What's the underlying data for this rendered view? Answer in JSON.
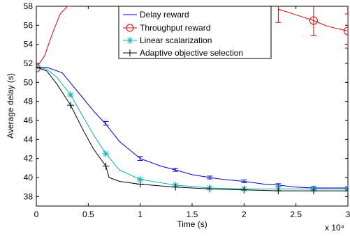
{
  "chart_data": {
    "type": "line",
    "title": "",
    "xlabel": "Time (s)",
    "ylabel": "Average delay (s)",
    "x_multiplier_label": "x 10⁴",
    "xlim": [
      0,
      30000
    ],
    "ylim": [
      37,
      58
    ],
    "x_ticks": [
      0,
      5000,
      10000,
      15000,
      20000,
      25000,
      30000
    ],
    "x_tick_labels": [
      "0",
      "0.5",
      "1",
      "1.5",
      "2",
      "2.5",
      "3"
    ],
    "y_ticks": [
      38,
      40,
      42,
      44,
      46,
      48,
      50,
      52,
      54,
      56,
      58
    ],
    "y_tick_labels": [
      "38",
      "40",
      "42",
      "44",
      "46",
      "48",
      "50",
      "52",
      "54",
      "56",
      "58"
    ],
    "grid": false,
    "legend_position": "top-right",
    "series": [
      {
        "name": "Delay reward",
        "color": "#0000cc",
        "marker": "errorbar",
        "x": [
          0,
          1000,
          2500,
          4000,
          5500,
          6700,
          8000,
          10000,
          12000,
          13400,
          15000,
          16700,
          18000,
          20000,
          22000,
          23300,
          25000,
          26700,
          28000,
          30000
        ],
        "y": [
          51.6,
          51.6,
          51.0,
          49.0,
          47.0,
          45.6,
          43.8,
          42.0,
          41.2,
          40.8,
          40.3,
          40.0,
          39.8,
          39.6,
          39.3,
          39.2,
          39.0,
          38.9,
          38.9,
          38.9
        ],
        "errorbars": [
          {
            "x": 6700,
            "y": 45.7,
            "err": 0.2
          },
          {
            "x": 10000,
            "y": 42.0,
            "err": 0.2
          },
          {
            "x": 13400,
            "y": 40.8,
            "err": 0.15
          },
          {
            "x": 16700,
            "y": 40.0,
            "err": 0.15
          },
          {
            "x": 20000,
            "y": 39.6,
            "err": 0.15
          },
          {
            "x": 23300,
            "y": 39.2,
            "err": 0.15
          },
          {
            "x": 26700,
            "y": 38.9,
            "err": 0.15
          },
          {
            "x": 30000,
            "y": 38.9,
            "err": 0.15
          }
        ]
      },
      {
        "name": "Throughput reward",
        "color": "#dd0000",
        "marker": "circle",
        "x": [
          0,
          800,
          1500,
          2300,
          3000,
          3300
        ],
        "y": [
          51.5,
          52.8,
          55.0,
          57.2,
          58.0,
          58.0
        ],
        "x2": [
          23300,
          25000,
          26700,
          28000,
          30000
        ],
        "y2": [
          57.7,
          57.1,
          56.5,
          55.9,
          55.4
        ],
        "markers_x": [
          0,
          26700,
          30000
        ],
        "markers_y": [
          51.5,
          56.5,
          55.4
        ],
        "errorbars": [
          {
            "x": 23300,
            "y": 57.7,
            "err": 1.4
          },
          {
            "x": 26700,
            "y": 56.5,
            "err": 1.6
          },
          {
            "x": 30000,
            "y": 55.4,
            "err": 1.8
          }
        ]
      },
      {
        "name": "Linear scalarization",
        "color": "#00b3b3",
        "marker": "asterisk",
        "x": [
          0,
          1000,
          2000,
          3300,
          4500,
          5500,
          6700,
          8000,
          10000,
          13400,
          16700,
          20000,
          23300,
          26700,
          30000
        ],
        "y": [
          51.6,
          51.4,
          50.5,
          48.7,
          46.4,
          44.5,
          42.5,
          40.8,
          39.8,
          39.2,
          38.9,
          38.8,
          38.8,
          38.8,
          38.8
        ],
        "markers_x": [
          0,
          3300,
          6700,
          10000,
          13400,
          16700,
          20000,
          23300,
          26700,
          30000
        ],
        "markers_y": [
          51.6,
          48.7,
          42.5,
          39.8,
          39.2,
          38.9,
          38.8,
          38.8,
          38.8,
          38.8
        ]
      },
      {
        "name": "Adaptive objective selection",
        "color": "#000000",
        "marker": "plus",
        "x": [
          0,
          1000,
          2000,
          3300,
          4500,
          5500,
          6700,
          7000,
          8000,
          10000,
          13400,
          16700,
          20000,
          23300,
          26700,
          30000
        ],
        "y": [
          51.6,
          51.2,
          49.8,
          47.6,
          45.0,
          43.0,
          41.2,
          40.0,
          39.6,
          39.3,
          39.0,
          38.8,
          38.7,
          38.6,
          38.6,
          38.6
        ],
        "markers_x": [
          0,
          3300,
          6700,
          10000,
          13400,
          16700,
          20000,
          23300,
          26700,
          30000
        ],
        "markers_y": [
          51.6,
          47.6,
          41.2,
          39.3,
          39.0,
          38.8,
          38.7,
          38.6,
          38.6,
          38.6
        ]
      }
    ]
  }
}
